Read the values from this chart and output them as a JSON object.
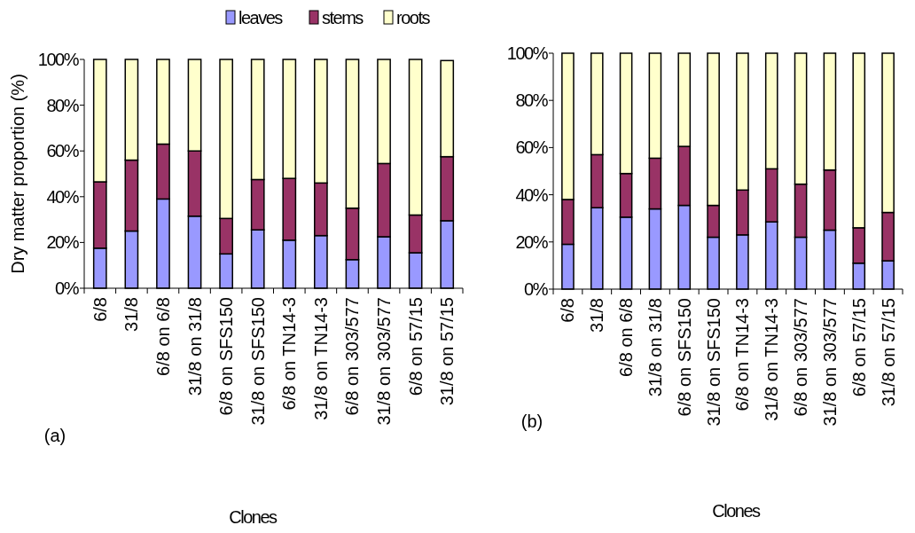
{
  "chart_data": [
    {
      "type": "bar",
      "stacked": true,
      "ylabel": "Dry matter proportion (%)",
      "xlabel": "Clones",
      "annotations": [
        "(a)"
      ],
      "legend": "top",
      "grid": false,
      "categories": [
        "6/8",
        "31/8",
        "6/8 on 6/8",
        "31/8 on 31/8",
        "6/8 on SFS150",
        "31/8 on SFS150",
        "6/8 on TN14-3",
        "31/8 on TN14-3",
        "6/8 on 303/577",
        "31/8 on 303/577",
        "6/8 on 57/15",
        "31/8 on 57/15"
      ],
      "ylim": [
        0,
        100
      ],
      "yticks": [
        {
          "value": 0,
          "label": "0%"
        },
        {
          "value": 20,
          "label": "20%"
        },
        {
          "value": 40,
          "label": "40%"
        },
        {
          "value": 60,
          "label": "60%"
        },
        {
          "value": 80,
          "label": "80%"
        },
        {
          "value": 100,
          "label": "100%"
        }
      ],
      "series": [
        {
          "name": "leaves",
          "color": "#9999ff",
          "values": [
            17.5,
            25,
            39,
            31.5,
            15,
            25.5,
            21,
            23,
            12.5,
            22.5,
            15.5,
            29.5
          ]
        },
        {
          "name": "stems",
          "color": "#993366",
          "values": [
            29,
            31,
            24,
            28.5,
            15.5,
            22,
            27,
            23,
            22.5,
            32,
            16.5,
            28
          ]
        },
        {
          "name": "roots",
          "color": "#ffffcc",
          "values": [
            53.5,
            44,
            37,
            40,
            69.5,
            52.5,
            52,
            54,
            65,
            45.5,
            68,
            42
          ]
        }
      ]
    },
    {
      "type": "bar",
      "stacked": true,
      "xlabel": "Clones",
      "annotations": [
        "(b)"
      ],
      "grid": false,
      "categories": [
        "6/8",
        "31/8",
        "6/8 on 6/8",
        "31/8 on 31/8",
        "6/8 on SFS150",
        "31/8 on SFS150",
        "6/8 on TN14-3",
        "31/8 on TN14-3",
        "6/8 on 303/577",
        "31/8 on 303/577",
        "6/8 on 57/15",
        "31/8 on 57/15"
      ],
      "ylim": [
        0,
        100
      ],
      "yticks": [
        {
          "value": 0,
          "label": "0%"
        },
        {
          "value": 20,
          "label": "20%"
        },
        {
          "value": 40,
          "label": "40%"
        },
        {
          "value": 60,
          "label": "60%"
        },
        {
          "value": 80,
          "label": "80%"
        },
        {
          "value": 100,
          "label": "100%"
        }
      ],
      "series": [
        {
          "color": "#9999ff",
          "values": [
            19,
            34.5,
            30.5,
            34,
            35.5,
            22,
            23,
            28.5,
            22,
            25,
            11,
            12
          ]
        },
        {
          "color": "#993366",
          "values": [
            19,
            22.5,
            18.5,
            21.5,
            25,
            13.5,
            19,
            22.5,
            22.5,
            25.5,
            15,
            20.5
          ]
        },
        {
          "color": "#ffffcc",
          "values": [
            62,
            43,
            51,
            44.5,
            39.5,
            64.5,
            58,
            49,
            55.5,
            49.5,
            74,
            67.5
          ]
        }
      ]
    }
  ]
}
